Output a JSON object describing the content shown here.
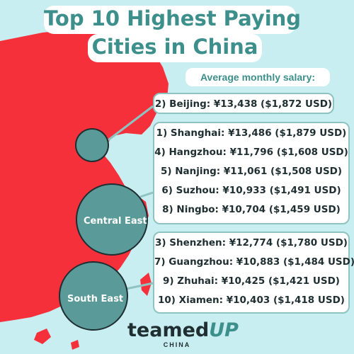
{
  "title": {
    "line1": "Top 10 Highest Paying",
    "line2": "Cities in China"
  },
  "subtitle": "Average monthly salary:",
  "groups": [
    {
      "rows": [
        "2) Beijing: ¥13,438 ($1,872 USD)"
      ]
    },
    {
      "rows": [
        "1) Shanghai: ¥13,486 ($1,879 USD)",
        "4) Hangzhou: ¥11,796 ($1,608 USD)",
        "5) Nanjing: ¥11,061 ($1,508 USD)",
        "6) Suzhou: ¥10,933 ($1,491 USD)",
        "8) Ningbo: ¥10,704 ($1,459 USD)"
      ]
    },
    {
      "rows": [
        "3) Shenzhen: ¥12,774 ($1,780 USD)",
        "7) Guangzhou: ¥10,883 ($1,484 USD)",
        "9) Zhuhai: ¥10,425 ($1,421 USD)",
        "10) Xiamen: ¥10,403 ($1,418 USD)"
      ]
    }
  ],
  "regions": {
    "central_east": "Central East",
    "south_east": "South East"
  },
  "logo": {
    "main_a": "teamed",
    "main_b": "UP",
    "sub": "CHINA"
  },
  "colors": {
    "background": "#c9eef2",
    "map": "#f5303a",
    "accent": "#3d8f8c",
    "circle": "#5a9b9a"
  }
}
